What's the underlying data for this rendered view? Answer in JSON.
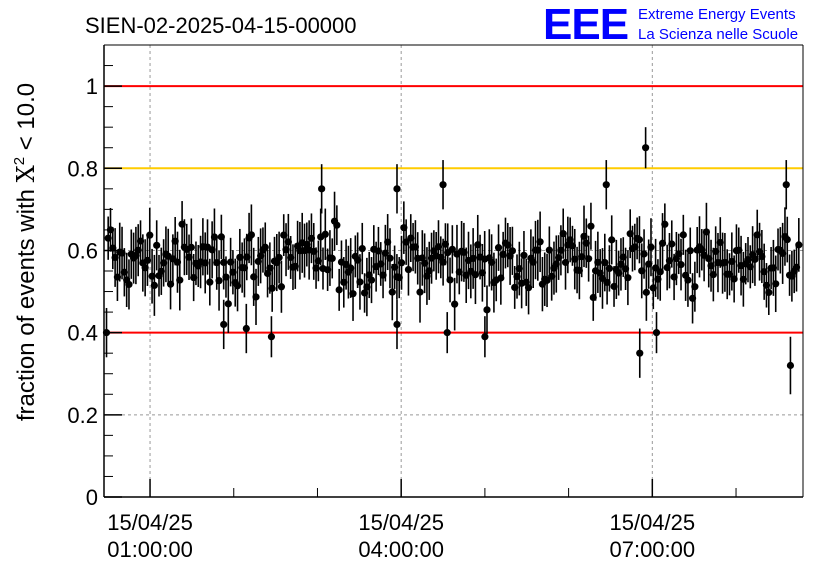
{
  "chart_data": {
    "type": "scatter",
    "title": "SIEN-02-2025-04-15-00000",
    "ylabel": "fraction of events with χ² < 10.0",
    "ylabel_parts": {
      "prefix": "fraction of events with ",
      "symbol": "X",
      "superscript": "2",
      "suffix": " < 10.0"
    },
    "xlabel": "",
    "ylim": [
      0,
      1.1
    ],
    "xlim_hours": [
      0.45,
      8.8
    ],
    "grid": true,
    "y_ticks": [
      {
        "value": 0,
        "label": "0"
      },
      {
        "value": 0.2,
        "label": "0.2"
      },
      {
        "value": 0.4,
        "label": "0.4"
      },
      {
        "value": 0.6,
        "label": "0.6"
      },
      {
        "value": 0.8,
        "label": "0.8"
      },
      {
        "value": 1,
        "label": "1"
      }
    ],
    "x_ticks": [
      {
        "hours": 1,
        "date": "15/04/25",
        "time": "01:00:00"
      },
      {
        "hours": 4,
        "date": "15/04/25",
        "time": "04:00:00"
      },
      {
        "hours": 7,
        "date": "15/04/25",
        "time": "07:00:00"
      }
    ],
    "reference_lines": [
      {
        "y": 1.0,
        "color": "#ff0000"
      },
      {
        "y": 0.8,
        "color": "#ffcc00"
      },
      {
        "y": 0.4,
        "color": "#ff0000"
      }
    ],
    "series_summary": {
      "name": "fraction",
      "n_points": 300,
      "mean": 0.575,
      "typical_error": 0.06,
      "marker_color": "#000000"
    },
    "notable_points": [
      {
        "hours": 0.48,
        "value": 0.4,
        "error": 0.06
      },
      {
        "hours": 2.15,
        "value": 0.41,
        "error": 0.06
      },
      {
        "hours": 2.45,
        "value": 0.39,
        "error": 0.05
      },
      {
        "hours": 1.88,
        "value": 0.42,
        "error": 0.06
      },
      {
        "hours": 3.95,
        "value": 0.42,
        "error": 0.06
      },
      {
        "hours": 4.55,
        "value": 0.4,
        "error": 0.05
      },
      {
        "hours": 5.0,
        "value": 0.39,
        "error": 0.05
      },
      {
        "hours": 6.85,
        "value": 0.35,
        "error": 0.06
      },
      {
        "hours": 6.92,
        "value": 0.85,
        "error": 0.05
      },
      {
        "hours": 7.05,
        "value": 0.4,
        "error": 0.05
      },
      {
        "hours": 8.65,
        "value": 0.32,
        "error": 0.07
      },
      {
        "hours": 3.05,
        "value": 0.75,
        "error": 0.06
      },
      {
        "hours": 3.95,
        "value": 0.75,
        "error": 0.06
      },
      {
        "hours": 4.5,
        "value": 0.76,
        "error": 0.06
      },
      {
        "hours": 8.6,
        "value": 0.76,
        "error": 0.06
      },
      {
        "hours": 6.45,
        "value": 0.76,
        "error": 0.06
      }
    ]
  },
  "logo": {
    "letters": "EEE",
    "line1": "Extreme Energy Events",
    "line2": "La Scienza nelle Scuole",
    "color": "#0000ff"
  },
  "colors": {
    "axis": "#000000",
    "grid": "#999999",
    "marker": "#000000"
  }
}
